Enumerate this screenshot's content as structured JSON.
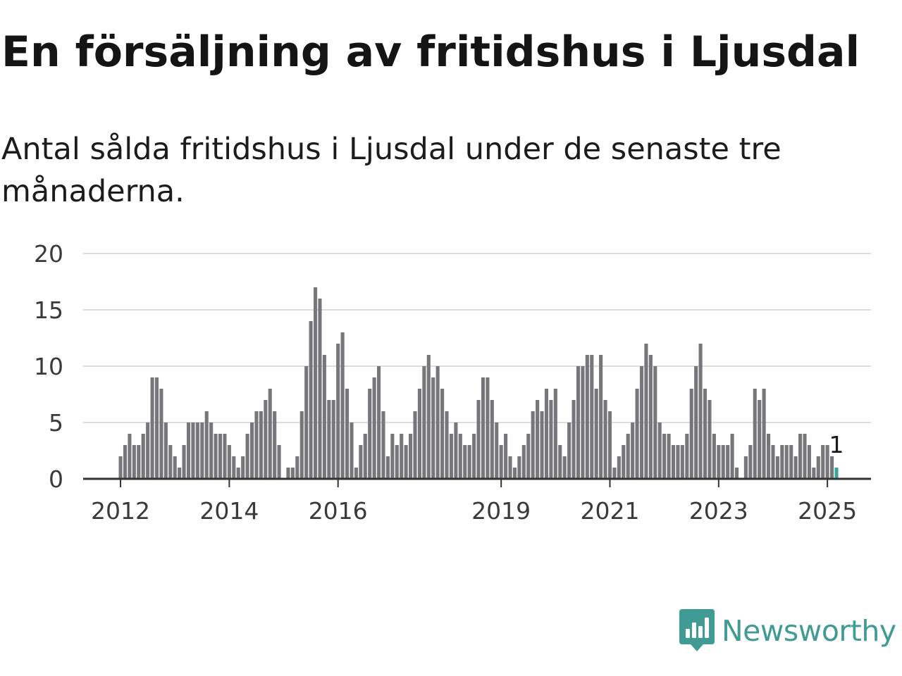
{
  "chart_data": {
    "type": "bar",
    "title": "En försäljning av fritidshus i Ljusdal",
    "subtitle": "Antal sålda fritidshus i Ljusdal under de senaste tre månaderna.",
    "x_ticks": [
      "2012",
      "2014",
      "2016",
      "2019",
      "2021",
      "2023",
      "2025"
    ],
    "y_ticks": [
      "0",
      "5",
      "10",
      "15",
      "20"
    ],
    "ylim": [
      0,
      20
    ],
    "grid": true,
    "bar_color": "#76767b",
    "highlight_color": "#3aa39c",
    "values": [
      2,
      3,
      4,
      3,
      3,
      4,
      5,
      9,
      9,
      8,
      5,
      3,
      2,
      1,
      3,
      5,
      5,
      5,
      5,
      6,
      5,
      4,
      4,
      4,
      3,
      2,
      1,
      2,
      4,
      5,
      6,
      6,
      7,
      8,
      6,
      3,
      0,
      1,
      1,
      2,
      6,
      10,
      14,
      17,
      16,
      11,
      7,
      7,
      12,
      13,
      8,
      5,
      1,
      3,
      4,
      8,
      9,
      10,
      6,
      2,
      4,
      3,
      4,
      3,
      4,
      6,
      8,
      10,
      11,
      9,
      10,
      8,
      6,
      4,
      5,
      4,
      3,
      3,
      4,
      7,
      9,
      9,
      7,
      5,
      3,
      4,
      2,
      1,
      2,
      3,
      4,
      6,
      7,
      6,
      8,
      7,
      8,
      3,
      2,
      5,
      7,
      10,
      10,
      11,
      11,
      8,
      11,
      7,
      6,
      1,
      2,
      3,
      4,
      5,
      8,
      10,
      12,
      11,
      10,
      5,
      4,
      4,
      3,
      3,
      3,
      4,
      8,
      10,
      12,
      8,
      7,
      4,
      3,
      3,
      3,
      4,
      1,
      0,
      2,
      3,
      8,
      7,
      8,
      4,
      3,
      2,
      3,
      3,
      3,
      2,
      4,
      4,
      3,
      1,
      2,
      3,
      3,
      2,
      1
    ],
    "highlight": {
      "index": 158,
      "value": 1,
      "label": "1"
    }
  },
  "brand": {
    "name": "Newsworthy",
    "icon": "newsworthy-logo-icon",
    "color": "#3f9b94"
  }
}
